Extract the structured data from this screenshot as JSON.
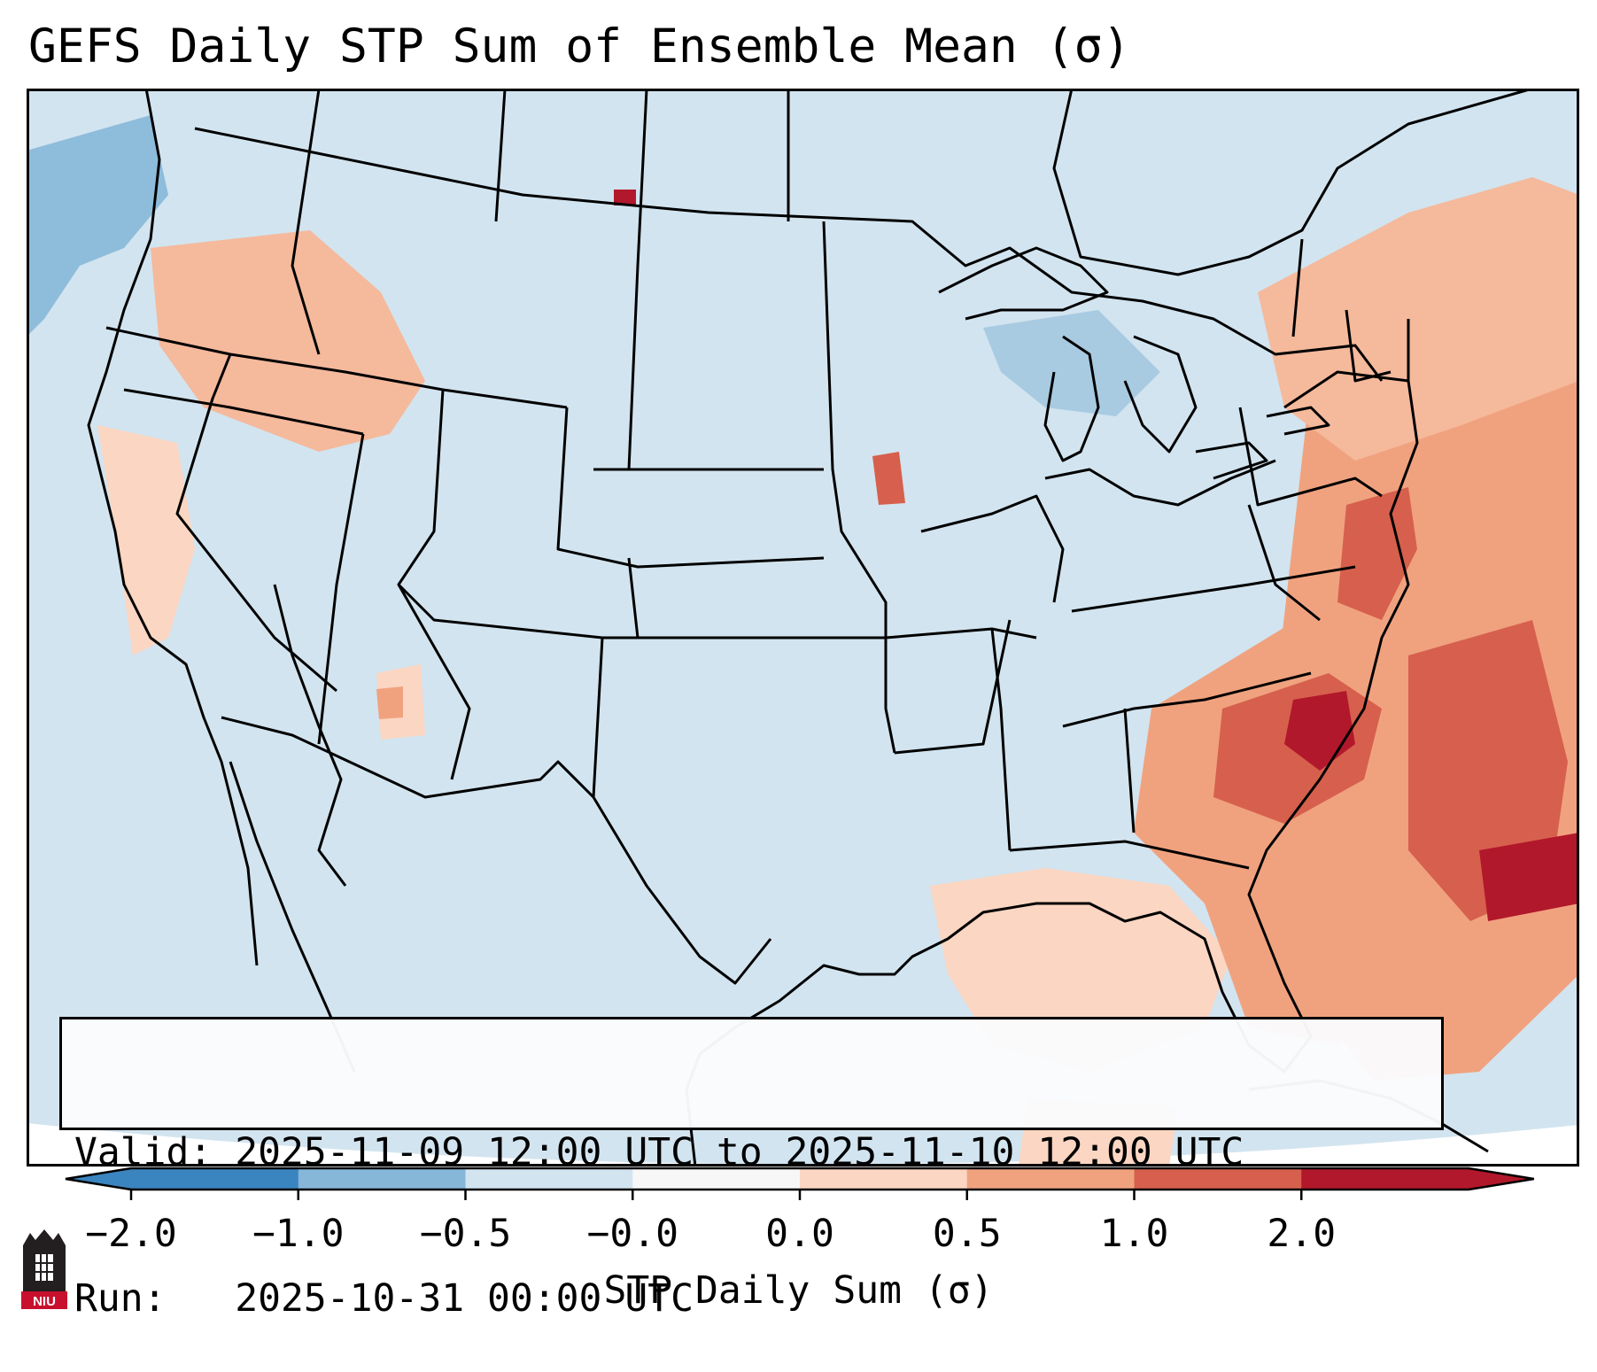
{
  "title": "GEFS Daily STP Sum of Ensemble Mean (σ)",
  "info": {
    "valid_line": "Valid: 2025-11-09 12:00 UTC to 2025-11-10 12:00 UTC",
    "run_line": "Run:   2025-10-31 00:00 UTC"
  },
  "colorbar": {
    "label": "STP Daily Sum (σ)",
    "ticks": [
      "−2.0",
      "−1.0",
      "−0.5",
      "−0.0",
      "0.0",
      "0.5",
      "1.0",
      "2.0"
    ],
    "colors": [
      "#3a84bf",
      "#86b7d8",
      "#d2e4ef",
      "#f7f7f7",
      "#fbd6c2",
      "#f0a27f",
      "#d6604d",
      "#b2182b"
    ]
  },
  "map": {
    "region": "Contiguous United States",
    "background_color": "#d2e4ef",
    "anomaly_areas": [
      {
        "region": "southeast-coast-atlantic",
        "sigma": 1.2
      },
      {
        "region": "carolinas",
        "sigma": 1.6
      },
      {
        "region": "mid-atlantic-new-jersey",
        "sigma": 1.4
      },
      {
        "region": "western-atlantic",
        "sigma": 1.5
      },
      {
        "region": "northeast-new-england",
        "sigma": 0.7
      },
      {
        "region": "florida-gulf",
        "sigma": 0.3
      },
      {
        "region": "pacific-northwest",
        "sigma": 0.4
      },
      {
        "region": "iowa",
        "sigma": 1.3
      },
      {
        "region": "arizona",
        "sigma": 0.4
      },
      {
        "region": "great-lakes",
        "sigma": -0.6
      },
      {
        "region": "pacific-offshore",
        "sigma": -0.7
      }
    ]
  },
  "logo": {
    "text": "NIU"
  }
}
